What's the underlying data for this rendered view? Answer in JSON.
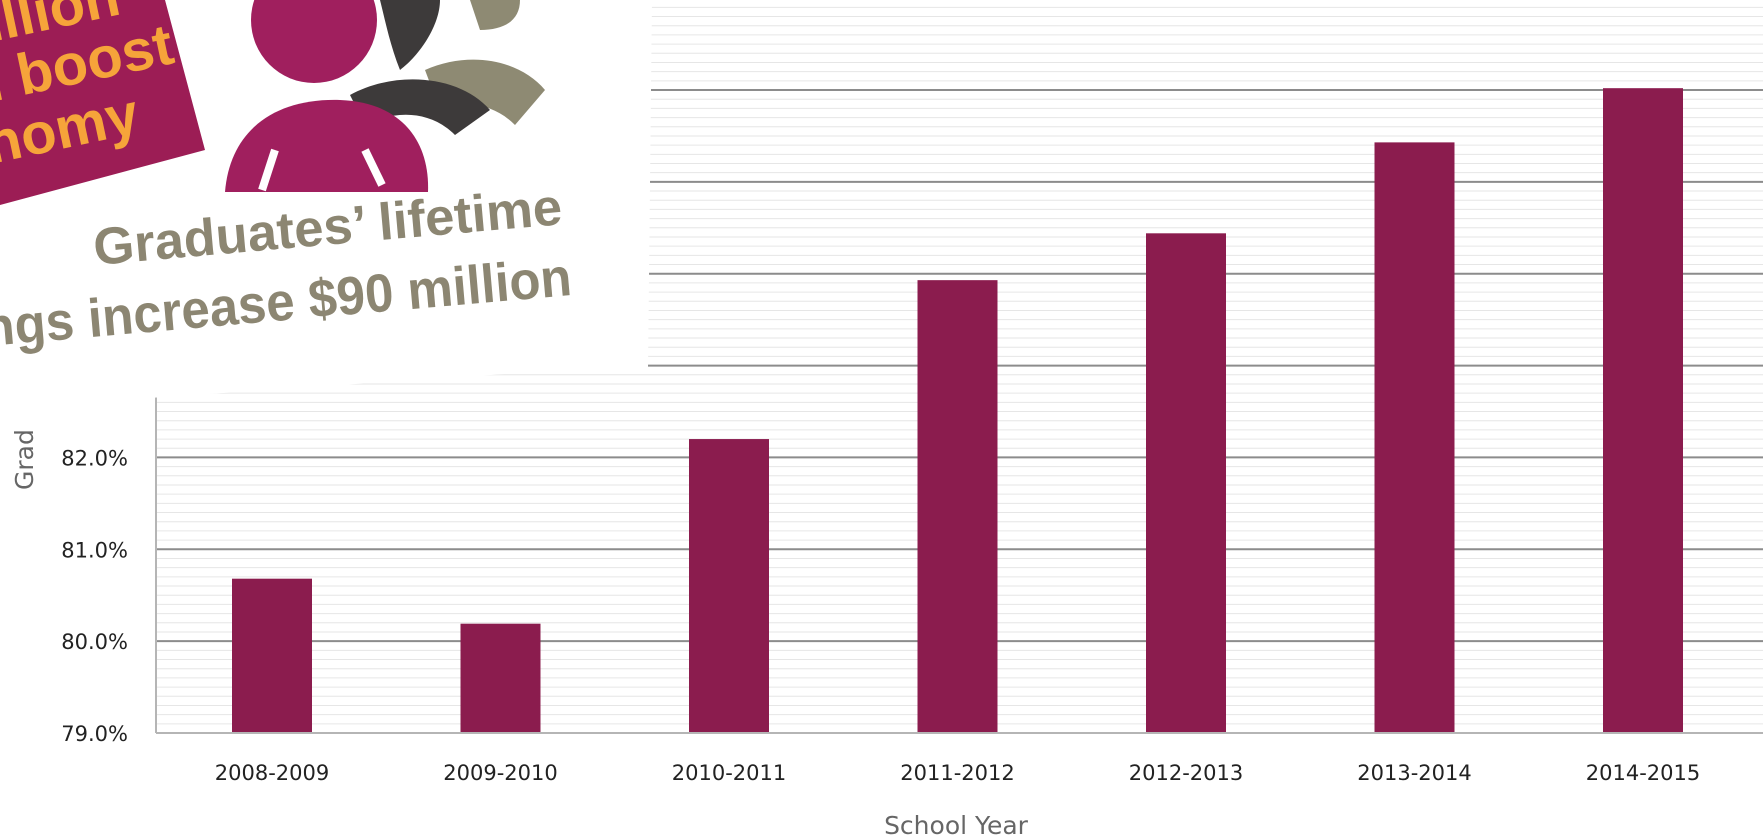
{
  "chart_data": {
    "type": "bar",
    "xlabel": "School Year",
    "ylabel": "Grad",
    "categories": [
      "2008-2009",
      "2009-2010",
      "2010-2011",
      "2011-2012",
      "2012-2013",
      "2013-2014",
      "2014-2015"
    ],
    "values": [
      80.68,
      80.19,
      82.2,
      83.93,
      84.44,
      85.43,
      86.02
    ],
    "ylim": [
      79.0,
      86.98
    ],
    "yticks_shown": [
      "79.0%",
      "80.0%",
      "81.0%",
      "82.0%"
    ],
    "grid": true,
    "colors": {
      "bar": "#8b1c4e",
      "major_grid": "#8c8c8c",
      "minor_grid": "#e6e6e6"
    }
  },
  "inset": {
    "headline_lines": [
      "illion",
      "l boost",
      "nomy"
    ],
    "caption_lines": [
      "Graduates’ lifetime",
      "ngs increase $90 million"
    ],
    "colors": {
      "banner": "#9c1d55",
      "headline_text": "#f6a43a",
      "caption_text": "#8c8672",
      "figure_magenta": "#a01f5e",
      "figure_dark": "#3d3a3a",
      "figure_khaki": "#8e8a73"
    }
  }
}
